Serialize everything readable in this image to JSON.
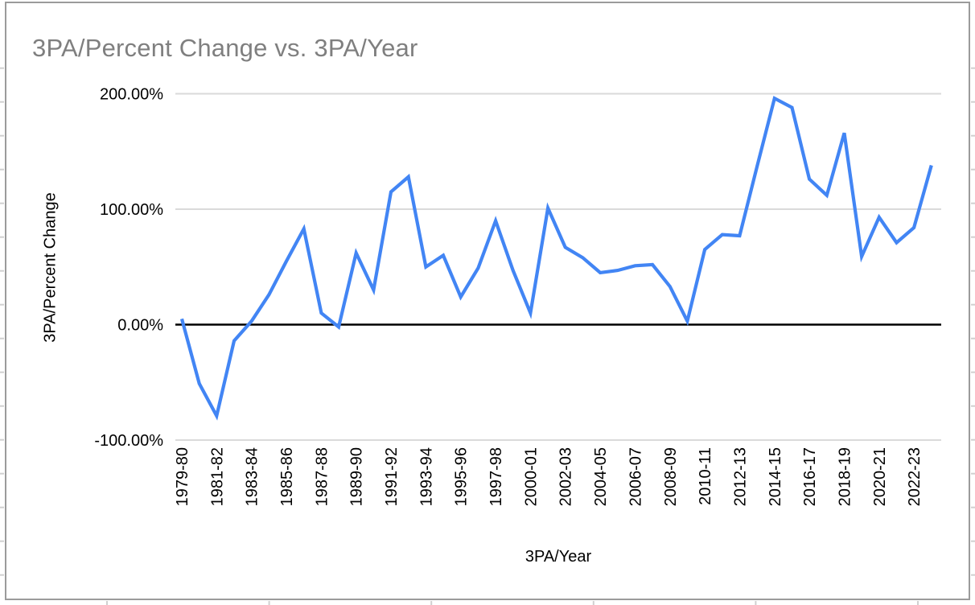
{
  "window": {
    "background": "#ffffff",
    "panel_border_color": "#9b9b9b",
    "sheet_gridline_color": "#d0d0d0"
  },
  "chart_data": {
    "type": "line",
    "title": "3PA/Percent Change vs. 3PA/Year",
    "xlabel": "3PA/Year",
    "ylabel": "3PA/Percent Change",
    "unit": "%",
    "series_name": "3PA/Percent Change",
    "series_color": "#4285f4",
    "grid_color": "#dadada",
    "zero_axis_color": "#000000",
    "tick_label_color": "#000000",
    "title_color": "#7f7f7f",
    "grid_on": true,
    "legend_position": "none",
    "ylim": [
      -100,
      200
    ],
    "x_tick_every": 2,
    "grid_values": [
      200,
      100,
      -100
    ],
    "zero_line_value": 0,
    "y_ticks": [
      {
        "label": "200.00%",
        "value": 200
      },
      {
        "label": "100.00%",
        "value": 100
      },
      {
        "label": "0.00%",
        "value": 0
      },
      {
        "label": "-100.00%",
        "value": -100
      }
    ],
    "categories": [
      "1979-80",
      "1980-81",
      "1981-82",
      "1982-83",
      "1983-84",
      "1984-85",
      "1985-86",
      "1986-87",
      "1987-88",
      "1988-89",
      "1989-90",
      "1990-91",
      "1991-92",
      "1992-93",
      "1993-94",
      "1994-95",
      "1995-96",
      "1996-97",
      "1997-98",
      "1999-00",
      "2000-01",
      "2001-02",
      "2002-03",
      "2003-04",
      "2004-05",
      "2005-06",
      "2006-07",
      "2007-08",
      "2008-09",
      "2009-10",
      "2010-11",
      "2011-12",
      "2012-13",
      "2013-14",
      "2014-15",
      "2015-16",
      "2016-17",
      "2017-18",
      "2018-19",
      "2019-20",
      "2020-21",
      "2021-22",
      "2022-23",
      "2023-24"
    ],
    "values": [
      5,
      -51,
      -79,
      -14,
      3,
      26,
      55,
      83,
      10,
      -2,
      62,
      30,
      115,
      128,
      50,
      60,
      24,
      49,
      90,
      47,
      10,
      101,
      67,
      58,
      45,
      47,
      51,
      52,
      33,
      3,
      65,
      78,
      77,
      137,
      196,
      188,
      126,
      112,
      166,
      59,
      93,
      71,
      84,
      138
    ]
  }
}
